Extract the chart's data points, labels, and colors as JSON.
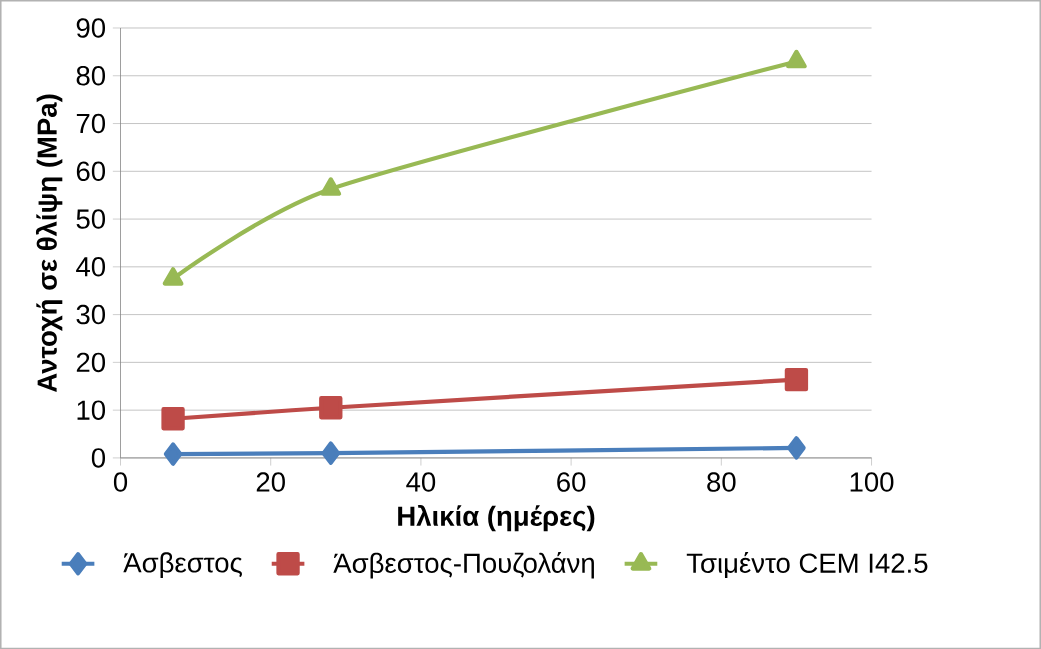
{
  "chart_data": {
    "type": "line",
    "xlabel": "Ηλικία (ημέρες)",
    "ylabel": "Αντοχή σε θλίψη (MPa)",
    "x": [
      7,
      28,
      90
    ],
    "series": [
      {
        "name": "Άσβεστος",
        "color": "#4a7ebb",
        "marker": "diamond",
        "values": [
          0.8,
          1.0,
          2.1
        ]
      },
      {
        "name": "Άσβεστος-Πουζολάνη",
        "color": "#be4b48",
        "marker": "square",
        "values": [
          8.2,
          10.5,
          16.4
        ]
      },
      {
        "name": "Τσιμέντο CEM I42.5",
        "color": "#98b954",
        "marker": "triangle",
        "values": [
          37.5,
          56.3,
          83.0
        ]
      }
    ],
    "xlim": [
      0,
      100
    ],
    "xticks": [
      0,
      20,
      40,
      60,
      80,
      100
    ],
    "ylim": [
      0,
      90
    ],
    "yticks": [
      0,
      10,
      20,
      30,
      40,
      50,
      60,
      70,
      80,
      90
    ],
    "grid": "y",
    "legend": "bottom",
    "line_style": "solid"
  }
}
